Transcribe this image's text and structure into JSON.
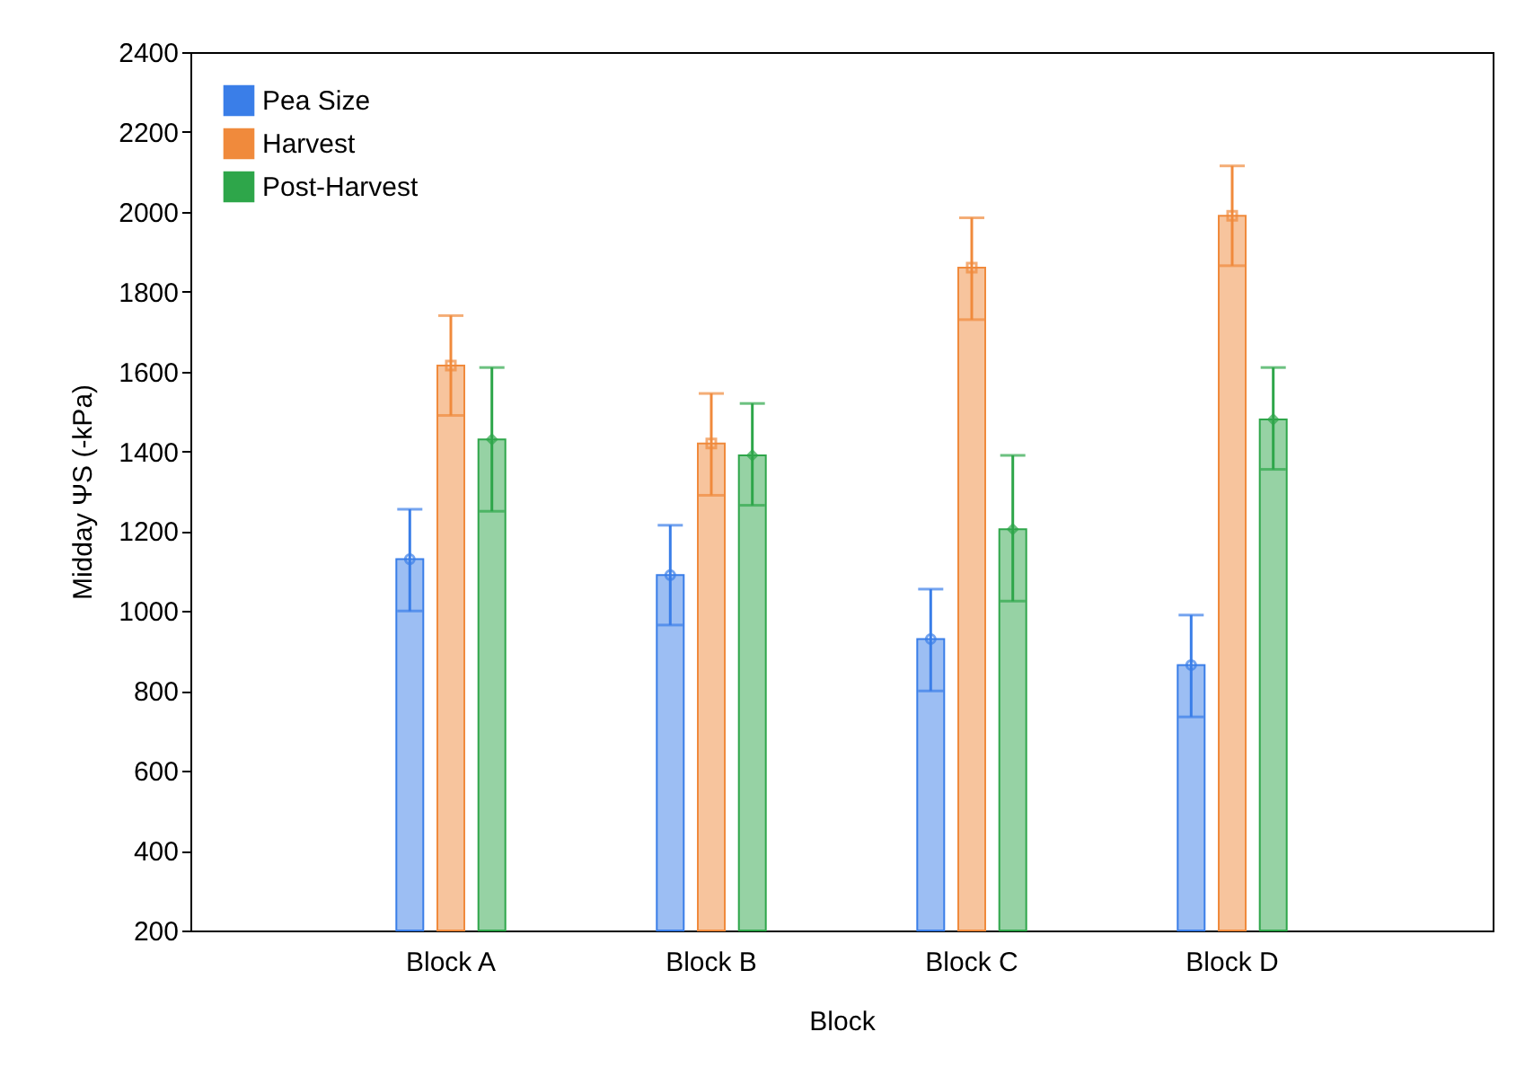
{
  "chart_data": {
    "type": "bar",
    "xlabel": "Block",
    "ylabel": "Midday ΨS (-kPa)",
    "categories": [
      "Block A",
      "Block B",
      "Block C",
      "Block D"
    ],
    "series": [
      {
        "name": "Pea Size",
        "color": "#3a7ee8",
        "values": [
          1130,
          1090,
          930,
          865
        ],
        "errors": [
          [
            1000,
            1255
          ],
          [
            965,
            1215
          ],
          [
            800,
            1055
          ],
          [
            735,
            990
          ]
        ]
      },
      {
        "name": "Harvest",
        "color": "#f08a3c",
        "values": [
          1615,
          1420,
          1860,
          1990
        ],
        "errors": [
          [
            1490,
            1740
          ],
          [
            1290,
            1545
          ],
          [
            1730,
            1985
          ],
          [
            1865,
            2115
          ]
        ]
      },
      {
        "name": "Post-Harvest",
        "color": "#2ea64a",
        "values": [
          1430,
          1390,
          1205,
          1480
        ],
        "errors": [
          [
            1250,
            1610
          ],
          [
            1265,
            1520
          ],
          [
            1025,
            1390
          ],
          [
            1355,
            1610
          ]
        ]
      },
      {
        "type": "scatter",
        "color": "#3a7ee8",
        "marker": "circle",
        "x": [
          "Block A",
          "Block B",
          "Block C",
          "Block D"
        ],
        "values": [
          1130,
          1090,
          930,
          865
        ]
      },
      {
        "type": "scatter",
        "color": "#f08a3c",
        "marker": "square",
        "x": [
          "Block A",
          "Block B",
          "Block C",
          "Block D"
        ],
        "values": [
          1615,
          1420,
          1860,
          1990
        ]
      },
      {
        "type": "scatter",
        "color": "#2ea64a",
        "marker": "diamond",
        "x": [
          "Block A",
          "Block B",
          "Block C",
          "Block D"
        ],
        "values": [
          1430,
          1390,
          1205,
          1480
        ]
      }
    ],
    "ylim": [
      200,
      2400
    ],
    "yticks": [
      200,
      400,
      600,
      800,
      1000,
      1200,
      1400,
      1600,
      1800,
      2000,
      2200,
      2400
    ],
    "grid": false,
    "legend": "top left"
  }
}
